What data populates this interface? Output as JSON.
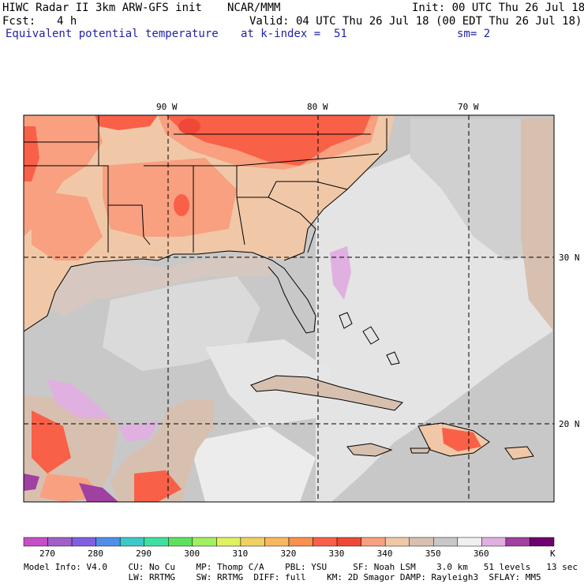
{
  "header": {
    "title": "HIWC Radar II 3km ARW-GFS init",
    "org": "NCAR/MMM",
    "init": "Init: 00 UTC Thu 26 Jul 18",
    "fcst_label": "Fcst:",
    "fcst_value": "4 h",
    "valid": "Valid: 04 UTC Thu 26 Jul 18 (00 EDT Thu 26 Jul 18)",
    "field": "Equivalent potential temperature",
    "level": "at k-index =  51",
    "smoothing": "sm= 2"
  },
  "map": {
    "lon_labels": [
      "90 W",
      "80 W",
      "70 W"
    ],
    "lat_labels": [
      "30 N",
      "20 N"
    ]
  },
  "colorbar": {
    "ticks": [
      "270",
      "280",
      "290",
      "300",
      "310",
      "320",
      "330",
      "340",
      "350",
      "360"
    ],
    "unit": "K",
    "colors": [
      "#c64fc6",
      "#a060c8",
      "#8060e0",
      "#4f8fe8",
      "#3ec8c8",
      "#3ee0a0",
      "#60e060",
      "#a0f060",
      "#e0f060",
      "#f0d060",
      "#f8b860",
      "#f89050",
      "#f86048",
      "#f04838",
      "#f8a080",
      "#f0c8a8",
      "#d8c0b0",
      "#c8c8c8",
      "#f0f0f0",
      "#e0b0e0",
      "#a040a0",
      "#700070"
    ]
  },
  "footer": {
    "line1": "Model Info: V4.0    CU: No Cu    MP: Thomp C/A    PBL: YSU     SF: Noah LSM    3.0 km   51 levels   13 sec",
    "line2": "                    LW: RRTMG    SW: RRTMG  DIFF: full    KM: 2D Smagor DAMP: Rayleigh3  SFLAY: MM5"
  }
}
